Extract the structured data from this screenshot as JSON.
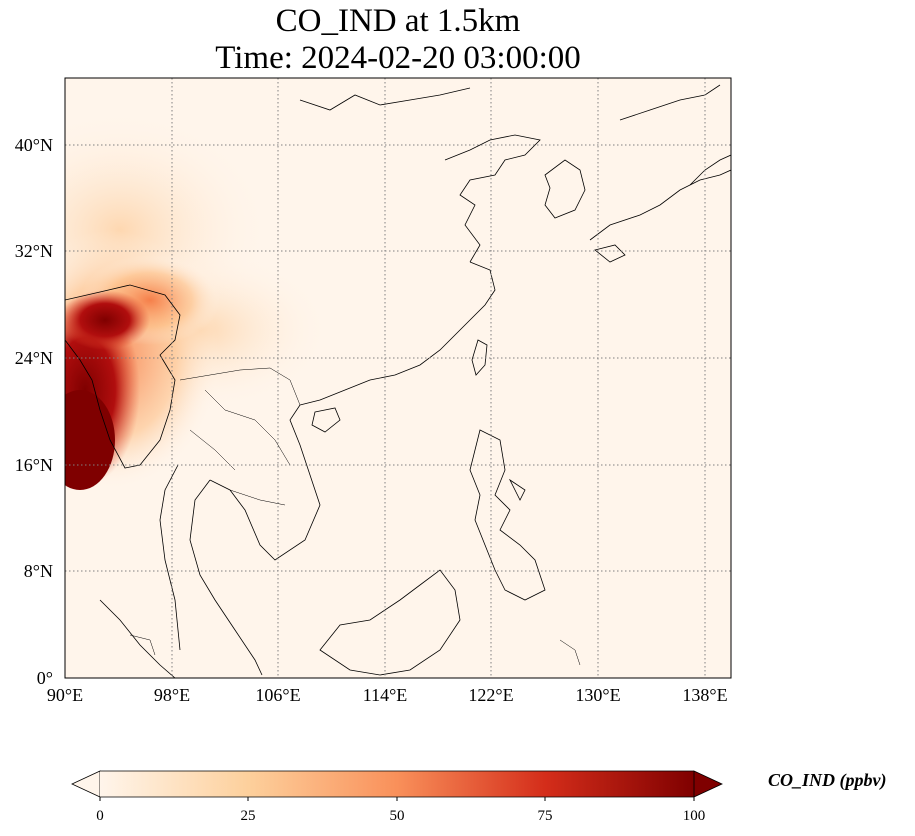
{
  "title": {
    "line1": "CO_IND at 1.5km",
    "line2": "Time: 2024-02-20 03:00:00"
  },
  "map": {
    "projection": "PlateCarree",
    "lon_range": [
      90,
      140
    ],
    "lat_range": [
      0,
      45
    ],
    "gridlines": "dotted",
    "x_ticks": [
      "90°E",
      "98°E",
      "106°E",
      "114°E",
      "122°E",
      "130°E",
      "138°E"
    ],
    "y_ticks": [
      "0°",
      "8°N",
      "16°N",
      "24°N",
      "32°N",
      "40°N"
    ],
    "colors": {
      "low": "#fff5eb",
      "mid_low": "#fdbe85",
      "mid": "#f4713a",
      "mid_high": "#d42d1a",
      "high": "#7f0000",
      "coastline": "#000000",
      "grid": "#808080"
    }
  },
  "colorbar": {
    "label": "CO_IND (ppbv)",
    "ticks": [
      "0",
      "25",
      "50",
      "75",
      "100"
    ],
    "range": [
      0,
      100
    ],
    "extend": "both"
  }
}
